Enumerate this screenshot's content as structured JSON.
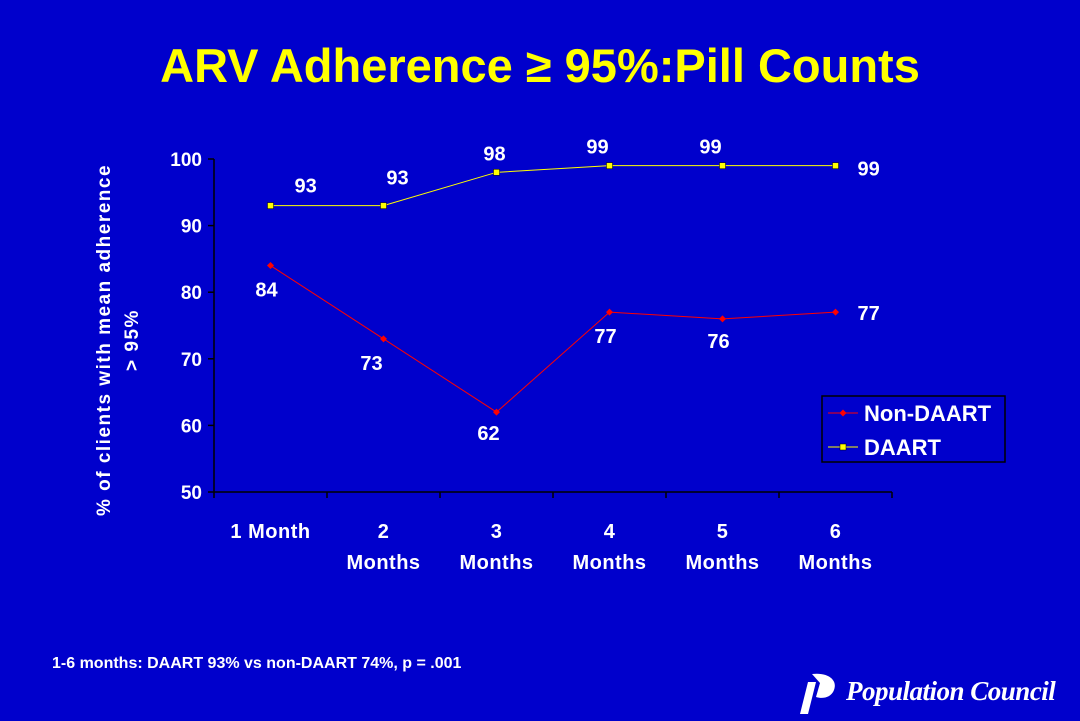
{
  "slide": {
    "title": "ARV Adherence ≥ 95%:Pill Counts",
    "footnote": "1-6 months: DAART 93% vs non-DAART 74%,  p = .001",
    "logo_text": "Population Council"
  },
  "colors": {
    "background": "#0000CC",
    "title": "#FFFF00",
    "text": "#FFFFFF",
    "non_daart": "#FF0000",
    "daart": "#FFFF00"
  },
  "chart_data": {
    "type": "line",
    "categories": [
      [
        "1 Month"
      ],
      [
        "2",
        "Months"
      ],
      [
        "3",
        "Months"
      ],
      [
        "4",
        "Months"
      ],
      [
        "5",
        "Months"
      ],
      [
        "6",
        "Months"
      ]
    ],
    "ylabel": [
      "% of clients with mean adherence",
      "> 95%"
    ],
    "ylim": [
      50,
      100
    ],
    "yticks": [
      50,
      60,
      70,
      80,
      90,
      100
    ],
    "grid": false,
    "legend_position": "right",
    "series": [
      {
        "name": "Non-DAART",
        "values": [
          84,
          73,
          62,
          77,
          76,
          77
        ],
        "color": "#FF0000",
        "marker": "diamond"
      },
      {
        "name": "DAART",
        "values": [
          93,
          93,
          98,
          99,
          99,
          99
        ],
        "color": "#FFFF00",
        "marker": "square"
      }
    ]
  }
}
